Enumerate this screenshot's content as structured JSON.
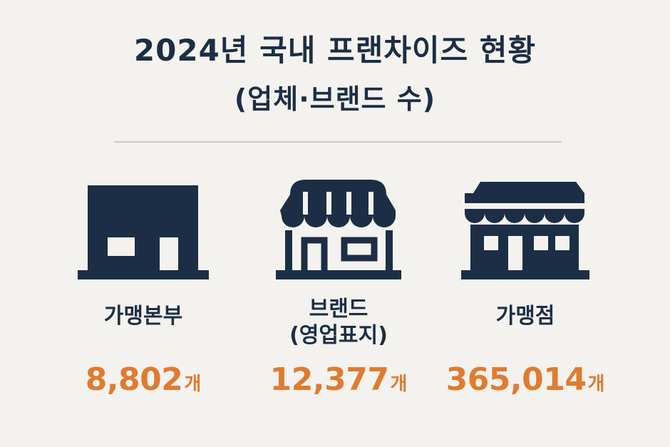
{
  "header": {
    "title_line1": "2024년 국내 프랜차이즈 현황",
    "title_line2": "(업체·브랜드 수)"
  },
  "colors": {
    "background": "#f4f2ee",
    "navy": "#1c2e45",
    "accent_orange": "#e07b30",
    "divider": "#c9cbc4"
  },
  "stats": [
    {
      "icon": "headquarters-building-icon",
      "label": "가맹본부",
      "value": "8,802",
      "unit": "개"
    },
    {
      "icon": "awning-storefront-icon",
      "label_line1": "브랜드",
      "label_line2": "(영업표지)",
      "value": "12,377",
      "unit": "개"
    },
    {
      "icon": "shop-store-icon",
      "label": "가맹점",
      "value": "365,014",
      "unit": "개"
    }
  ]
}
